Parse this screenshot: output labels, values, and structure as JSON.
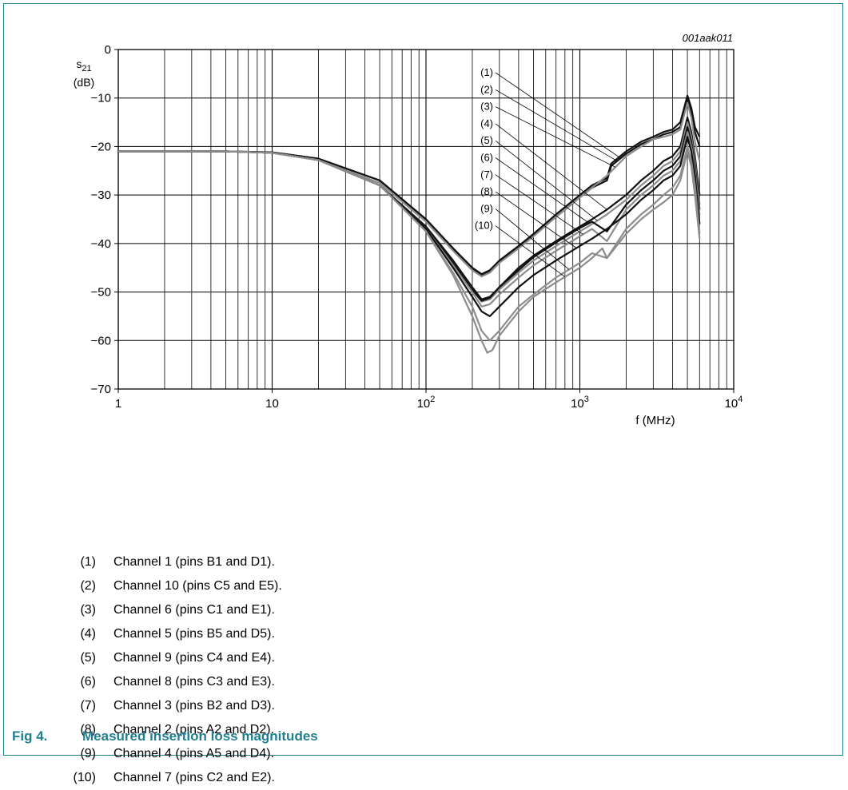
{
  "figure_tag": "001aak011",
  "ylabel": {
    "symbol": "s",
    "subscript": "21",
    "unit": "(dB)"
  },
  "xlabel": "f (MHz)",
  "y_ticks": [
    "0",
    "−10",
    "−20",
    "−30",
    "−40",
    "−50",
    "−60",
    "−70"
  ],
  "x_ticks": [
    {
      "base": "1",
      "exp": ""
    },
    {
      "base": "10",
      "exp": ""
    },
    {
      "base": "10",
      "exp": "2"
    },
    {
      "base": "10",
      "exp": "3"
    },
    {
      "base": "10",
      "exp": "4"
    }
  ],
  "callout_labels": [
    "(1)",
    "(2)",
    "(3)",
    "(4)",
    "(5)",
    "(6)",
    "(7)",
    "(8)",
    "(9)",
    "(10)"
  ],
  "legend": [
    {
      "num": "(1)",
      "text": "Channel 1 (pins B1 and D1)."
    },
    {
      "num": "(2)",
      "text": "Channel 10 (pins C5 and E5)."
    },
    {
      "num": "(3)",
      "text": "Channel 6 (pins C1 and E1)."
    },
    {
      "num": "(4)",
      "text": "Channel 5 (pins B5 and D5)."
    },
    {
      "num": "(5)",
      "text": "Channel 9 (pins C4 and E4)."
    },
    {
      "num": "(6)",
      "text": "Channel 8 (pins C3 and E3)."
    },
    {
      "num": "(7)",
      "text": "Channel 3 (pins B2 and D3)."
    },
    {
      "num": "(8)",
      "text": "Channel 2 (pins A2 and D2)."
    },
    {
      "num": "(9)",
      "text": "Channel 4 (pins A5 and D4)."
    },
    {
      "num": "(10)",
      "text": "Channel 7 (pins C2 and E2)."
    }
  ],
  "caption": {
    "fig": "Fig 4.",
    "title": "Measured insertion loss magnitudes"
  },
  "colors": {
    "accent": "#1f7f8e",
    "black_trace": "#111111",
    "gray_trace": "#8c8c8c",
    "grid": "#000000"
  },
  "chart_data": {
    "type": "line",
    "x_scale": "log",
    "xlim": [
      1,
      10000
    ],
    "ylim": [
      -70,
      0
    ],
    "grid": true,
    "series": [
      {
        "label_ref": "(1)",
        "color": "black",
        "x": [
          1,
          5,
          10,
          20,
          50,
          100,
          150,
          200,
          230,
          260,
          300,
          400,
          500,
          700,
          1000,
          1200,
          1500,
          1600,
          2000,
          2500,
          3000,
          3500,
          4000,
          4500,
          5000,
          5300,
          5600,
          6000
        ],
        "y": [
          -21,
          -21,
          -21.2,
          -22.5,
          -27,
          -35,
          -41,
          -45,
          -46.3,
          -45.5,
          -43.5,
          -40.5,
          -38,
          -34,
          -30,
          -28,
          -26.5,
          -23.5,
          -21,
          -19,
          -18,
          -17,
          -16.5,
          -15,
          -9.5,
          -12,
          -16,
          -18
        ]
      },
      {
        "label_ref": "(2)",
        "color": "black",
        "x": [
          1,
          5,
          10,
          20,
          50,
          100,
          150,
          200,
          230,
          260,
          300,
          400,
          500,
          700,
          1000,
          1200,
          1500,
          1600,
          2000,
          2500,
          3000,
          3500,
          4000,
          4500,
          5000,
          5300,
          5600,
          6000
        ],
        "y": [
          -21,
          -21,
          -21.2,
          -22.5,
          -27,
          -35,
          -41,
          -45.2,
          -46.5,
          -45.8,
          -43.8,
          -40.8,
          -38.3,
          -34.5,
          -30.5,
          -28.5,
          -27,
          -24,
          -21.5,
          -19.5,
          -18.5,
          -17.5,
          -17,
          -16,
          -10.5,
          -13,
          -17,
          -20
        ]
      },
      {
        "label_ref": "(3)",
        "color": "gray",
        "x": [
          1,
          5,
          10,
          20,
          50,
          100,
          150,
          200,
          230,
          260,
          300,
          400,
          500,
          700,
          1000,
          1500,
          2000,
          2500,
          3000,
          3500,
          4000,
          4500,
          5000,
          5300,
          5600,
          6000
        ],
        "y": [
          -21,
          -21,
          -21.3,
          -22.8,
          -27.5,
          -35.5,
          -41.5,
          -45.5,
          -46.8,
          -46,
          -44,
          -41,
          -38.5,
          -34.5,
          -30.5,
          -26,
          -22,
          -20,
          -18.5,
          -18,
          -17.5,
          -16.5,
          -11,
          -14,
          -19,
          -23
        ]
      },
      {
        "label_ref": "(4)",
        "color": "black",
        "x": [
          1,
          5,
          10,
          20,
          50,
          100,
          150,
          200,
          230,
          260,
          300,
          400,
          500,
          700,
          1000,
          1200,
          1500,
          2000,
          2500,
          3000,
          3500,
          4000,
          4500,
          5000,
          5300,
          5600,
          6000
        ],
        "y": [
          -21,
          -21,
          -21.3,
          -22.8,
          -28,
          -36.5,
          -43.5,
          -49,
          -51.5,
          -51,
          -49,
          -45,
          -42.5,
          -39.5,
          -36.5,
          -35,
          -33,
          -30,
          -27,
          -25,
          -23,
          -22,
          -20,
          -14,
          -17,
          -22,
          -30
        ]
      },
      {
        "label_ref": "(5)",
        "color": "gray",
        "x": [
          1,
          5,
          10,
          20,
          50,
          100,
          150,
          200,
          230,
          260,
          300,
          400,
          500,
          700,
          1000,
          1200,
          1500,
          2000,
          2500,
          3000,
          3500,
          4000,
          4500,
          5000,
          5300,
          5600,
          6000
        ],
        "y": [
          -21,
          -21,
          -21.3,
          -22.8,
          -28,
          -37,
          -44,
          -49.5,
          -52,
          -51.5,
          -49.5,
          -46,
          -43.5,
          -40.5,
          -37.5,
          -36,
          -34,
          -31,
          -28,
          -26,
          -24,
          -23,
          -21,
          -15,
          -18,
          -23,
          -32
        ]
      },
      {
        "label_ref": "(6)",
        "color": "black",
        "x": [
          1,
          5,
          10,
          20,
          50,
          100,
          150,
          200,
          230,
          260,
          300,
          400,
          500,
          700,
          1000,
          1200,
          1500,
          2000,
          2500,
          3000,
          3500,
          4000,
          4500,
          5000,
          5300,
          5600,
          6000
        ],
        "y": [
          -21,
          -21,
          -21.3,
          -22.8,
          -28,
          -37,
          -44,
          -49.5,
          -51.8,
          -51.2,
          -49,
          -45.5,
          -42.8,
          -39.8,
          -36.8,
          -35.5,
          -37.5,
          -32,
          -29,
          -27,
          -25,
          -24,
          -22,
          -16,
          -19,
          -24,
          -33
        ]
      },
      {
        "label_ref": "(7)",
        "color": "gray",
        "x": [
          1,
          5,
          10,
          20,
          50,
          100,
          150,
          200,
          230,
          260,
          300,
          400,
          500,
          700,
          1000,
          1200,
          1500,
          2000,
          2500,
          3000,
          3500,
          4000,
          4500,
          5000,
          5300,
          5600,
          6000
        ],
        "y": [
          -21,
          -21,
          -21.3,
          -22.8,
          -28,
          -37,
          -44.5,
          -50,
          -53,
          -52.5,
          -50.5,
          -47,
          -44.5,
          -41.5,
          -38.5,
          -37,
          -39.5,
          -33,
          -30,
          -28,
          -26,
          -25,
          -23,
          -17,
          -20,
          -25,
          -34
        ]
      },
      {
        "label_ref": "(8)",
        "color": "black",
        "x": [
          1,
          5,
          10,
          20,
          50,
          100,
          150,
          200,
          230,
          260,
          300,
          400,
          500,
          700,
          1000,
          1200,
          1500,
          2000,
          2500,
          3000,
          3500,
          4000,
          4500,
          5000,
          5300,
          5600,
          6000
        ],
        "y": [
          -21,
          -21,
          -21.3,
          -22.8,
          -28,
          -37,
          -45,
          -51,
          -54,
          -55,
          -53,
          -49,
          -46.5,
          -43.5,
          -40.5,
          -39,
          -37,
          -34,
          -31,
          -29,
          -27,
          -26,
          -24,
          -18,
          -21,
          -26,
          -36
        ]
      },
      {
        "label_ref": "(9)",
        "color": "gray",
        "x": [
          1,
          5,
          10,
          20,
          50,
          100,
          150,
          200,
          230,
          260,
          300,
          400,
          500,
          700,
          1000,
          1200,
          1500,
          2000,
          2500,
          3000,
          3500,
          4000,
          4500,
          5000,
          5300,
          5600,
          6000
        ],
        "y": [
          -21,
          -21,
          -21.3,
          -22.8,
          -28,
          -37.5,
          -46,
          -53,
          -58,
          -60,
          -58,
          -53,
          -50.5,
          -47,
          -44,
          -42,
          -43,
          -37,
          -34,
          -32,
          -30,
          -28.5,
          -26,
          -20,
          -23,
          -28,
          -38
        ]
      },
      {
        "label_ref": "(10)",
        "color": "gray",
        "x": [
          1,
          5,
          10,
          20,
          50,
          100,
          150,
          200,
          230,
          250,
          270,
          300,
          400,
          500,
          700,
          1000,
          1200,
          1400,
          1500,
          2000,
          2500,
          3000,
          3500,
          4000,
          4500,
          5000,
          5300,
          5600,
          6000
        ],
        "y": [
          -21,
          -21,
          -21.3,
          -22.8,
          -28,
          -37.5,
          -46.5,
          -55,
          -60,
          -62.5,
          -62,
          -59,
          -54,
          -51,
          -48,
          -45,
          -43,
          -41,
          -43,
          -38,
          -35,
          -33,
          -31.5,
          -30,
          -27,
          -21,
          -24,
          -30,
          -39
        ]
      }
    ]
  }
}
